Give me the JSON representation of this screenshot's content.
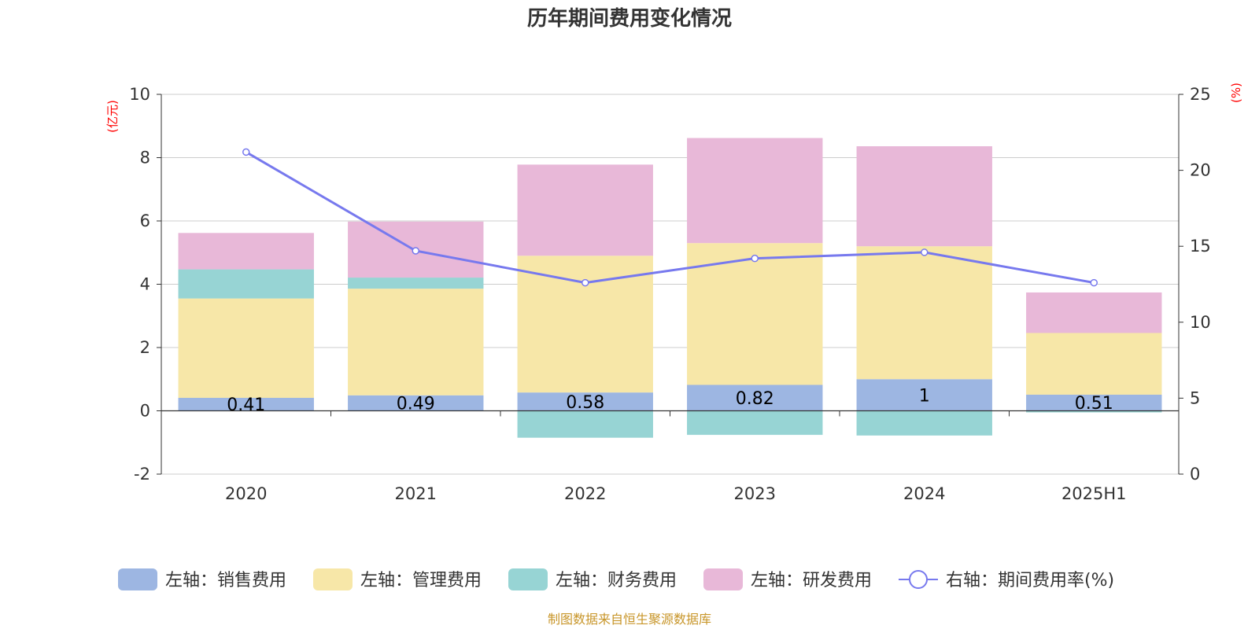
{
  "chart_data": {
    "type": "bar",
    "title": "历年期间费用变化情况",
    "categories": [
      "2020",
      "2021",
      "2022",
      "2023",
      "2024",
      "2025H1"
    ],
    "left_axis": {
      "unit": "(亿元)",
      "ylim": [
        -2,
        10
      ],
      "ticks": [
        -2,
        0,
        2,
        4,
        6,
        8,
        10
      ]
    },
    "right_axis": {
      "unit": "(%)",
      "ylim": [
        0,
        25
      ],
      "ticks": [
        0,
        5,
        10,
        15,
        20,
        25
      ]
    },
    "series": [
      {
        "name": "左轴：销售费用",
        "axis": "left",
        "color": "#9db6e2",
        "values": [
          0.41,
          0.49,
          0.58,
          0.82,
          1.0,
          0.51
        ],
        "labels": [
          "0.41",
          "0.49",
          "0.58",
          "0.82",
          "1",
          "0.51"
        ]
      },
      {
        "name": "左轴：管理费用",
        "axis": "left",
        "color": "#f7e7a8",
        "values": [
          3.14,
          3.37,
          4.32,
          4.48,
          4.2,
          1.95
        ]
      },
      {
        "name": "左轴：财务费用",
        "axis": "left",
        "color": "#97d4d4",
        "values": [
          0.92,
          0.35,
          -0.85,
          -0.76,
          -0.78,
          -0.05
        ]
      },
      {
        "name": "左轴：研发费用",
        "axis": "left",
        "color": "#e8b8d8",
        "values": [
          1.15,
          1.77,
          2.88,
          3.32,
          3.16,
          1.28
        ]
      },
      {
        "name": "右轴：期间费用率(%)",
        "axis": "right",
        "type": "line",
        "color": "#7779ee",
        "values": [
          21.2,
          14.7,
          12.6,
          14.2,
          14.6,
          12.6
        ]
      }
    ],
    "grid": true,
    "legend_position": "bottom",
    "footer": "制图数据来自恒生聚源数据库"
  }
}
